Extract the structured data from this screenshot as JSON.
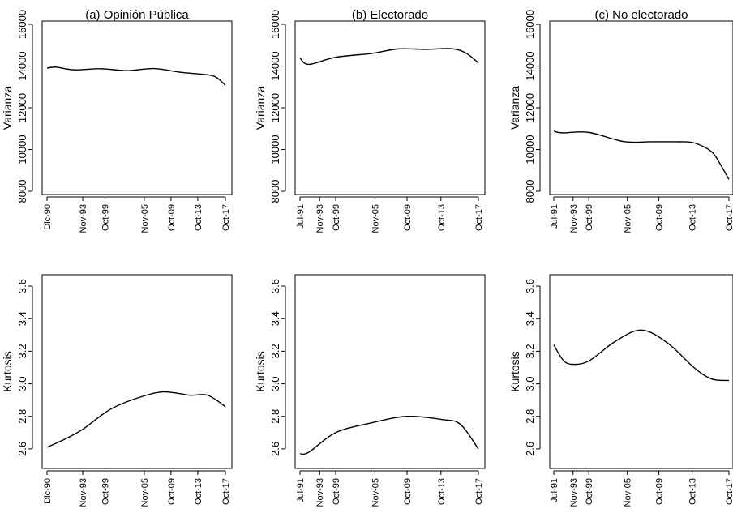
{
  "chart_data": [
    {
      "type": "line",
      "title": "(a) Opinión Pública",
      "ylabel": "Varianza",
      "ylim": [
        8000,
        16000
      ],
      "yticks": [
        "8000",
        "10000",
        "12000",
        "14000",
        "16000"
      ],
      "xticks": [
        {
          "label": "Dic-90",
          "pos": 0.0
        },
        {
          "label": "Nov-93",
          "pos": 0.2
        },
        {
          "label": "Oct-99",
          "pos": 0.325
        },
        {
          "label": "Nov-05",
          "pos": 0.545
        },
        {
          "label": "Oct-09",
          "pos": 0.695
        },
        {
          "label": "Oct-13",
          "pos": 0.845
        },
        {
          "label": "Oct-17",
          "pos": 1.0
        }
      ],
      "x": [
        0.0,
        0.05,
        0.15,
        0.3,
        0.45,
        0.6,
        0.75,
        0.9,
        0.95,
        1.0
      ],
      "values": [
        13900,
        13950,
        13820,
        13870,
        13780,
        13880,
        13700,
        13580,
        13450,
        13080
      ]
    },
    {
      "type": "line",
      "title": "(b) Electorado",
      "ylabel": "Varianza",
      "ylim": [
        8000,
        16000
      ],
      "yticks": [
        "8000",
        "10000",
        "12000",
        "14000",
        "16000"
      ],
      "xticks": [
        {
          "label": "Jul-91",
          "pos": 0.0
        },
        {
          "label": "Nov-93",
          "pos": 0.11
        },
        {
          "label": "Oct-99",
          "pos": 0.2
        },
        {
          "label": "Nov-05",
          "pos": 0.42
        },
        {
          "label": "Oct-09",
          "pos": 0.6
        },
        {
          "label": "Oct-13",
          "pos": 0.79
        },
        {
          "label": "Oct-17",
          "pos": 1.0
        }
      ],
      "x": [
        0.0,
        0.05,
        0.2,
        0.4,
        0.55,
        0.7,
        0.85,
        0.93,
        1.0
      ],
      "values": [
        14380,
        14080,
        14420,
        14600,
        14820,
        14800,
        14830,
        14620,
        14150
      ]
    },
    {
      "type": "line",
      "title": "(c) No electorado",
      "ylabel": "Varianza",
      "ylim": [
        8000,
        16000
      ],
      "yticks": [
        "8000",
        "10000",
        "12000",
        "14000",
        "16000"
      ],
      "xticks": [
        {
          "label": "Jul-91",
          "pos": 0.0
        },
        {
          "label": "Nov-93",
          "pos": 0.11
        },
        {
          "label": "Oct-99",
          "pos": 0.2
        },
        {
          "label": "Nov-05",
          "pos": 0.42
        },
        {
          "label": "Oct-09",
          "pos": 0.6
        },
        {
          "label": "Oct-13",
          "pos": 0.79
        },
        {
          "label": "Oct-17",
          "pos": 1.0
        }
      ],
      "x": [
        0.0,
        0.05,
        0.2,
        0.4,
        0.55,
        0.7,
        0.8,
        0.9,
        0.95,
        1.0
      ],
      "values": [
        10880,
        10800,
        10820,
        10380,
        10370,
        10370,
        10320,
        9900,
        9300,
        8570
      ]
    },
    {
      "type": "line",
      "title": "",
      "ylabel": "Kurtosis",
      "ylim": [
        2.5,
        3.65
      ],
      "yticks": [
        "2.6",
        "2.8",
        "3.0",
        "3.2",
        "3.4",
        "3.6"
      ],
      "xticks": [
        {
          "label": "Dic-90",
          "pos": 0.0
        },
        {
          "label": "Nov-93",
          "pos": 0.2
        },
        {
          "label": "Oct-99",
          "pos": 0.325
        },
        {
          "label": "Nov-05",
          "pos": 0.545
        },
        {
          "label": "Oct-09",
          "pos": 0.695
        },
        {
          "label": "Oct-13",
          "pos": 0.845
        },
        {
          "label": "Oct-17",
          "pos": 1.0
        }
      ],
      "x": [
        0.0,
        0.1,
        0.2,
        0.35,
        0.5,
        0.65,
        0.8,
        0.9,
        1.0
      ],
      "values": [
        2.61,
        2.66,
        2.72,
        2.84,
        2.91,
        2.95,
        2.93,
        2.93,
        2.86
      ]
    },
    {
      "type": "line",
      "title": "",
      "ylabel": "Kurtosis",
      "ylim": [
        2.5,
        3.65
      ],
      "yticks": [
        "2.6",
        "2.8",
        "3.0",
        "3.2",
        "3.4",
        "3.6"
      ],
      "xticks": [
        {
          "label": "Jul-91",
          "pos": 0.0
        },
        {
          "label": "Nov-93",
          "pos": 0.11
        },
        {
          "label": "Oct-99",
          "pos": 0.2
        },
        {
          "label": "Nov-05",
          "pos": 0.42
        },
        {
          "label": "Oct-09",
          "pos": 0.6
        },
        {
          "label": "Oct-13",
          "pos": 0.79
        },
        {
          "label": "Oct-17",
          "pos": 1.0
        }
      ],
      "x": [
        0.0,
        0.05,
        0.2,
        0.4,
        0.6,
        0.8,
        0.9,
        1.0
      ],
      "values": [
        2.57,
        2.58,
        2.7,
        2.76,
        2.8,
        2.78,
        2.75,
        2.6
      ]
    },
    {
      "type": "line",
      "title": "",
      "ylabel": "Kurtosis",
      "ylim": [
        2.5,
        3.65
      ],
      "yticks": [
        "2.6",
        "2.8",
        "3.0",
        "3.2",
        "3.4",
        "3.6"
      ],
      "xticks": [
        {
          "label": "Jul-91",
          "pos": 0.0
        },
        {
          "label": "Nov-93",
          "pos": 0.11
        },
        {
          "label": "Oct-99",
          "pos": 0.2
        },
        {
          "label": "Nov-05",
          "pos": 0.42
        },
        {
          "label": "Oct-09",
          "pos": 0.6
        },
        {
          "label": "Oct-13",
          "pos": 0.79
        },
        {
          "label": "Oct-17",
          "pos": 1.0
        }
      ],
      "x": [
        0.0,
        0.05,
        0.1,
        0.2,
        0.35,
        0.5,
        0.65,
        0.8,
        0.9,
        1.0
      ],
      "values": [
        3.24,
        3.15,
        3.12,
        3.14,
        3.26,
        3.33,
        3.25,
        3.1,
        3.03,
        3.02
      ]
    }
  ]
}
